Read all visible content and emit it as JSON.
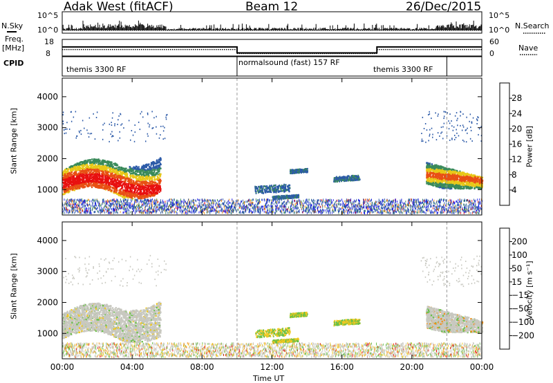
{
  "header": {
    "radar": "Adak West (fitACF)",
    "beam": "Beam 12",
    "date": "26/Dec/2015"
  },
  "strip_labels": {
    "nsky": "N.Sky",
    "nsearch": "N.Search",
    "freq_line1": "Freq.",
    "freq_line2": "[MHz]",
    "nave": "Nave",
    "cpid": "CPID",
    "nsky_ticks": [
      "10^5",
      "10^0"
    ],
    "nsearch_ticks": [
      "10^5",
      "10^0"
    ],
    "freq_ticks": [
      "18",
      "8"
    ],
    "nave_ticks": [
      "60",
      "0"
    ]
  },
  "cpid_segments": [
    {
      "label": "themis 3300 RF",
      "start": "00:00",
      "end": "10:00"
    },
    {
      "label": "normalsound (fast) 157 RF",
      "start": "10:00",
      "end": "22:00"
    },
    {
      "label": "themis 3300 RF",
      "start": "22:00",
      "end": "24:00"
    }
  ],
  "chart_data": [
    {
      "type": "heatmap",
      "parameter": "Power",
      "ylabel": "Slant Range [km]",
      "ylim": [
        180,
        4600
      ],
      "yticks": [
        "1000",
        "2000",
        "3000",
        "4000"
      ],
      "xlim_hours": [
        0,
        24
      ],
      "xticks": [
        "00:00",
        "04:00",
        "08:00",
        "12:00",
        "16:00",
        "20:00",
        "00:00"
      ],
      "colorbar": {
        "label": "Power [dB]",
        "ticks": [
          "4",
          "8",
          "12",
          "16",
          "20",
          "24",
          "28"
        ],
        "colors": [
          "#1818e8",
          "#2c5aa8",
          "#3a8a5a",
          "#68b430",
          "#e8c818",
          "#f09418",
          "#e85014",
          "#e81010"
        ]
      }
    },
    {
      "type": "heatmap",
      "parameter": "Velocity",
      "ylabel": "Slant Range [km]",
      "xlabel": "Time UT",
      "ylim": [
        180,
        4600
      ],
      "yticks": [
        "1000",
        "2000",
        "3000",
        "4000"
      ],
      "xlim_hours": [
        0,
        24
      ],
      "xticks": [
        "00:00",
        "04:00",
        "08:00",
        "12:00",
        "16:00",
        "20:00",
        "00:00"
      ],
      "colorbar": {
        "label": "Velocity [m s⁻¹]",
        "ticks": [
          "200",
          "100",
          "50",
          "15",
          "−15",
          "−50",
          "−100",
          "−200"
        ],
        "colors": [
          "#1c2ca8",
          "#2c5aa8",
          "#3a8a3a",
          "#68c048",
          "#c8c8c0",
          "#f0c820",
          "#f09018",
          "#e85010",
          "#e81010"
        ]
      }
    }
  ]
}
